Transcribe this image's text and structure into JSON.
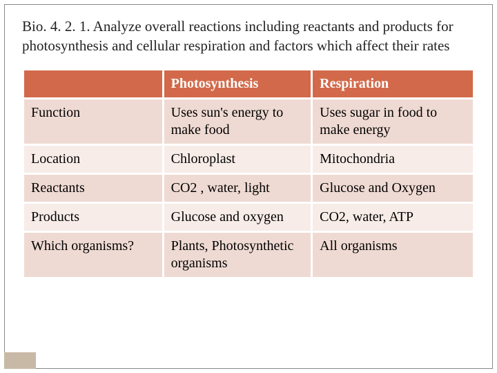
{
  "title": "Bio. 4. 2. 1. Analyze overall reactions including reactants and products for photosynthesis and cellular respiration and factors which affect their rates",
  "table": {
    "type": "table",
    "header_bg": "#d2694a",
    "header_fg": "#ffffff",
    "row_odd_bg": "#efdad3",
    "row_even_bg": "#f7ece8",
    "border_spacing": 3,
    "cell_fontsize": 20,
    "columns": [
      {
        "label": "",
        "width_pct": 31
      },
      {
        "label": "Photosynthesis",
        "width_pct": 33
      },
      {
        "label": "Respiration",
        "width_pct": 36
      }
    ],
    "rows": [
      {
        "label": "Function",
        "photo": "Uses sun's energy to make food",
        "resp": "Uses sugar in food to make energy"
      },
      {
        "label": "Location",
        "photo": "Chloroplast",
        "resp": "Mitochondria"
      },
      {
        "label": "Reactants",
        "photo": "CO2 , water, light",
        "resp": "Glucose and Oxygen"
      },
      {
        "label": "Products",
        "photo": "Glucose and oxygen",
        "resp": "CO2, water, ATP"
      },
      {
        "label": "Which organisms?",
        "photo": "Plants, Photosynthetic organisms",
        "resp": "All organisms"
      }
    ]
  },
  "accent_color": "#c8b9a6",
  "slide_border_color": "#888888",
  "background_color": "#ffffff"
}
